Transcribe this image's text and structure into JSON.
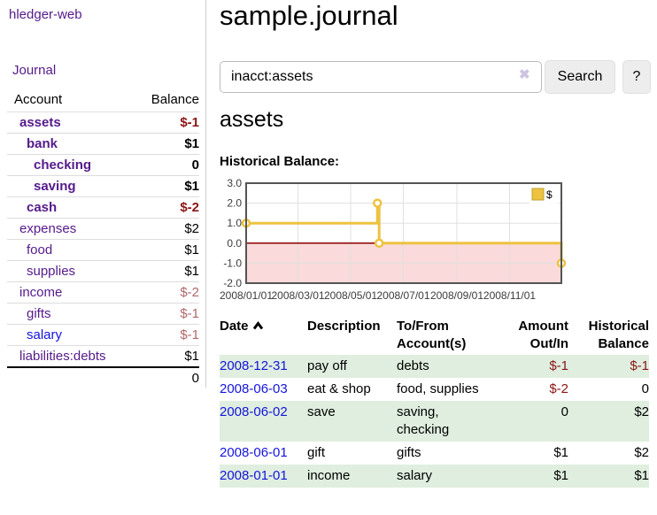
{
  "app": {
    "brand": "hledger-web"
  },
  "sidebar": {
    "journal_label": "Journal",
    "account_header": "Account",
    "balance_header": "Balance",
    "rows": [
      {
        "account": "assets",
        "balance": "$-1",
        "indent": 1,
        "bold": true,
        "account_color": "purple",
        "balance_style": "neg-strong"
      },
      {
        "account": "bank",
        "balance": "$1",
        "indent": 2,
        "bold": true,
        "account_color": "purple",
        "balance_style": "plain"
      },
      {
        "account": "checking",
        "balance": "0",
        "indent": 3,
        "bold": true,
        "account_color": "purple",
        "balance_style": "plain"
      },
      {
        "account": "saving",
        "balance": "$1",
        "indent": 3,
        "bold": true,
        "account_color": "purple",
        "balance_style": "plain"
      },
      {
        "account": "cash",
        "balance": "$-2",
        "indent": 2,
        "bold": true,
        "account_color": "purple",
        "balance_style": "neg-strong"
      },
      {
        "account": "expenses",
        "balance": "$2",
        "indent": 1,
        "bold": false,
        "account_color": "purple",
        "balance_style": "plain"
      },
      {
        "account": "food",
        "balance": "$1",
        "indent": 2,
        "bold": false,
        "account_color": "purple",
        "balance_style": "plain"
      },
      {
        "account": "supplies",
        "balance": "$1",
        "indent": 2,
        "bold": false,
        "account_color": "purple",
        "balance_style": "plain"
      },
      {
        "account": "income",
        "balance": "$-2",
        "indent": 1,
        "bold": false,
        "account_color": "purple",
        "balance_style": "neg-soft"
      },
      {
        "account": "gifts",
        "balance": "$-1",
        "indent": 2,
        "bold": false,
        "account_color": "purple",
        "balance_style": "neg-soft"
      },
      {
        "account": "salary",
        "balance": "$-1",
        "indent": 2,
        "bold": false,
        "account_color": "blue",
        "balance_style": "neg-soft"
      },
      {
        "account": "liabilities:debts",
        "balance": "$1",
        "indent": 1,
        "bold": false,
        "account_color": "purple",
        "balance_style": "plain"
      }
    ],
    "total": "0"
  },
  "main": {
    "title": "sample.journal",
    "search": {
      "value": "inacct:assets",
      "clear_icon": "✖",
      "button_label": "Search",
      "help_label": "?"
    },
    "account_heading": "assets"
  },
  "chart_data": {
    "type": "line",
    "title": "Historical Balance:",
    "step": true,
    "series": [
      {
        "name": "$",
        "color": "#edc240",
        "points": [
          {
            "date": "2008-01-01",
            "day": 0,
            "y": 1
          },
          {
            "date": "2008-06-01",
            "day": 152,
            "y": 2
          },
          {
            "date": "2008-06-03",
            "day": 154,
            "y": 0
          },
          {
            "date": "2008-12-31",
            "day": 365,
            "y": -1
          }
        ]
      }
    ],
    "x_ticks": [
      {
        "label": "2008/01/01",
        "day": 0
      },
      {
        "label": "2008/03/01",
        "day": 60
      },
      {
        "label": "2008/05/01",
        "day": 121
      },
      {
        "label": "2008/07/01",
        "day": 182
      },
      {
        "label": "2008/09/01",
        "day": 244
      },
      {
        "label": "2008/11/01",
        "day": 305
      }
    ],
    "y_ticks": [
      3.0,
      2.0,
      1.0,
      0.0,
      -1.0,
      -2.0
    ],
    "ylim": [
      -2,
      3
    ],
    "xlim_days": [
      0,
      365
    ],
    "grid": true,
    "legend_position": "top-right",
    "legend": {
      "label": "$",
      "swatch_color": "#edc240"
    },
    "negative_region_color": "#fadada",
    "zero_line_color": "#8b0000",
    "border_color": "#545454",
    "gridline_color": "#e0e0e0"
  },
  "register": {
    "columns": [
      "Date",
      "Description",
      "To/From Account(s)",
      "Amount Out/In",
      "Historical Balance"
    ],
    "sort_indicator": "ascending",
    "rows": [
      {
        "date": "2008-12-31",
        "description": "pay off",
        "accounts": "debts",
        "amount": "$-1",
        "balance": "$-1",
        "amount_negative": true,
        "balance_negative": true,
        "highlighted": true
      },
      {
        "date": "2008-06-03",
        "description": "eat & shop",
        "accounts": "food, supplies",
        "amount": "$-2",
        "balance": "0",
        "amount_negative": true,
        "balance_negative": false,
        "highlighted": false
      },
      {
        "date": "2008-06-02",
        "description": "save",
        "accounts": "saving, checking",
        "amount": "0",
        "balance": "$2",
        "amount_negative": false,
        "balance_negative": false,
        "highlighted": true
      },
      {
        "date": "2008-06-01",
        "description": "gift",
        "accounts": "gifts",
        "amount": "$1",
        "balance": "$2",
        "amount_negative": false,
        "balance_negative": false,
        "highlighted": false
      },
      {
        "date": "2008-01-01",
        "description": "income",
        "accounts": "salary",
        "amount": "$1",
        "balance": "$1",
        "amount_negative": false,
        "balance_negative": false,
        "highlighted": true
      }
    ]
  },
  "colors": {
    "link_purple": "#551a8b",
    "link_blue": "#1414dd",
    "negative_red": "#8b1515",
    "negative_faded_red": "#b06868",
    "row_highlight_green": "#dfeedf",
    "chart_line_gold": "#edc240",
    "negative_region_pink": "#fadada",
    "zero_line_dark_red": "#8b0000"
  }
}
